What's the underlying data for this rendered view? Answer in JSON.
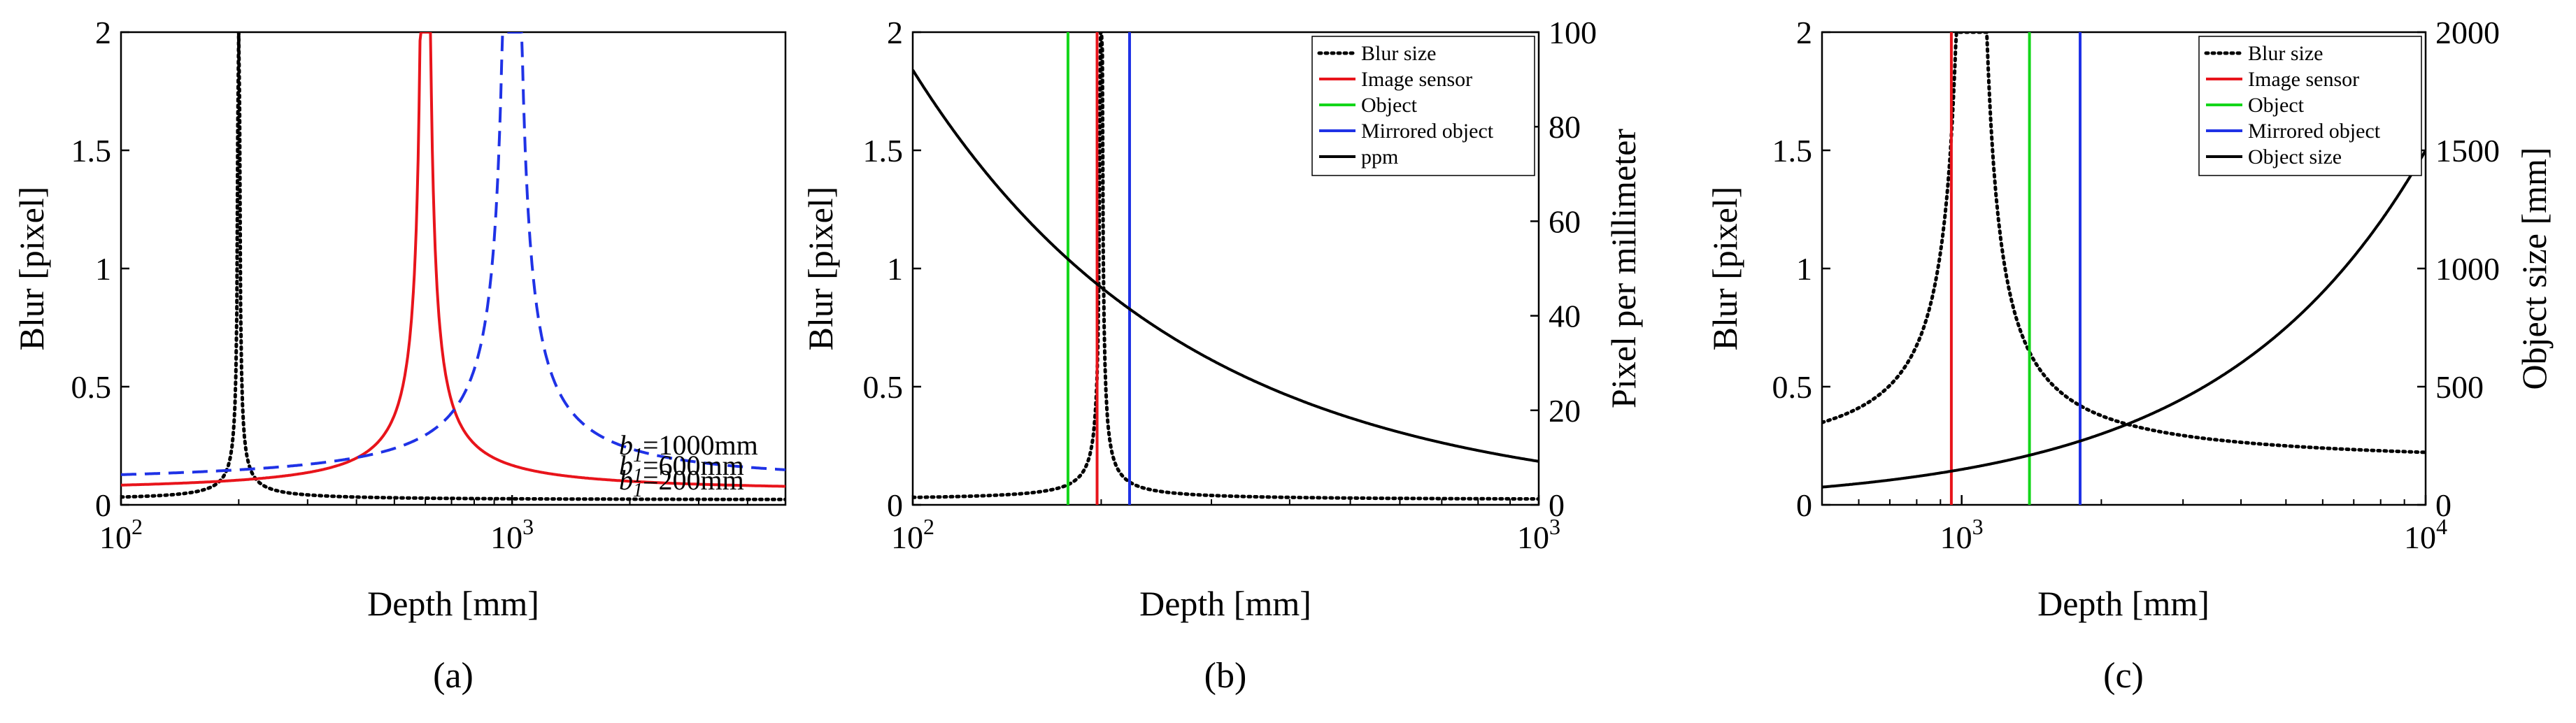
{
  "chart_data": [
    {
      "type": "line",
      "panel_label": "(a)",
      "xscale": "log",
      "xlim": [
        100,
        5000
      ],
      "ylim": [
        0,
        2
      ],
      "xlabel": "Depth [mm]",
      "ylabel": "Blur [pixel]",
      "x_ticks": [
        {
          "base": "10",
          "exp": "2"
        },
        {
          "base": "10",
          "exp": "3"
        }
      ],
      "y_ticks": [
        "0",
        "0.5",
        "1",
        "1.5",
        "2"
      ],
      "series": [
        {
          "name": "b1=200mm",
          "style": "dotted",
          "color": "#000000",
          "model": "blur",
          "focus_mm": 200,
          "k": 0.009,
          "c": 0.02,
          "cap": 2
        },
        {
          "name": "b1=600mm",
          "style": "solid",
          "color": "#e8141b",
          "model": "blur",
          "focus_mm": 600,
          "k": 0.06,
          "c": 0.05,
          "cap": 2
        },
        {
          "name": "b1=1000mm",
          "style": "dashed",
          "color": "#1f32e6",
          "model": "blur",
          "focus_mm": 1000,
          "k": 0.11,
          "c": 0.08,
          "cap": 2
        }
      ],
      "annotations": [
        {
          "series": 2,
          "sub": "1",
          "rest": "=1000mm",
          "at_x": 3300
        },
        {
          "series": 1,
          "sub": "1",
          "rest": "=600mm",
          "at_x": 3300
        },
        {
          "series": 0,
          "sub": "1",
          "rest": "=200mm",
          "at_x": 3300
        }
      ]
    },
    {
      "type": "line",
      "panel_label": "(b)",
      "xscale": "log",
      "xlim": [
        100,
        1000
      ],
      "ylim": [
        0,
        2
      ],
      "y2lim": [
        0,
        100
      ],
      "xlabel": "Depth [mm]",
      "ylabel": "Blur [pixel]",
      "y2label": "Pixel per millimeter",
      "x_ticks": [
        {
          "base": "10",
          "exp": "2"
        },
        {
          "base": "10",
          "exp": "3"
        }
      ],
      "y_ticks": [
        "0",
        "0.5",
        "1",
        "1.5",
        "2"
      ],
      "y2_ticks": [
        "0",
        "20",
        "40",
        "60",
        "80",
        "100"
      ],
      "series": [
        {
          "name": "Blur size",
          "style": "dotted",
          "color": "#000000",
          "model": "blur",
          "focus_mm": 200,
          "k": 0.008,
          "c": 0.02,
          "cap": 2
        },
        {
          "name": "Image sensor",
          "style": "solid",
          "color": "#e8141b",
          "model": "vline",
          "x": 197
        },
        {
          "name": "Object",
          "style": "solid",
          "color": "#13d61a",
          "model": "vline",
          "x": 177
        },
        {
          "name": "Mirrored object",
          "style": "solid",
          "color": "#1f32e6",
          "model": "vline",
          "x": 222
        },
        {
          "name": "ppm",
          "style": "solid",
          "color": "#000000",
          "model": "power",
          "axis": "y2",
          "a": 9200,
          "p": 1.0
        }
      ],
      "legend": {
        "position": "top-right"
      }
    },
    {
      "type": "line",
      "panel_label": "(c)",
      "xscale": "log",
      "xlim": [
        500,
        10000
      ],
      "ylim": [
        0,
        2
      ],
      "y2lim": [
        0,
        2000
      ],
      "xlabel": "Depth [mm]",
      "ylabel": "Blur [pixel]",
      "y2label": "Object size [mm]",
      "x_ticks": [
        {
          "value": 1000,
          "base": "10",
          "exp": "3"
        },
        {
          "value": 10000,
          "base": "10",
          "exp": "4"
        }
      ],
      "y_ticks": [
        "0",
        "0.5",
        "1",
        "1.5",
        "2"
      ],
      "y2_ticks": [
        "0",
        "500",
        "1000",
        "1500",
        "2000"
      ],
      "series": [
        {
          "name": "Blur size",
          "style": "dotted",
          "color": "#000000",
          "model": "blur",
          "focus_mm": 1050,
          "k": 0.14,
          "c": 0.16,
          "cap": 2
        },
        {
          "name": "Image sensor",
          "style": "solid",
          "color": "#e8141b",
          "model": "vline",
          "x": 950
        },
        {
          "name": "Object",
          "style": "solid",
          "color": "#13d61a",
          "model": "vline",
          "x": 1400
        },
        {
          "name": "Mirrored object",
          "style": "solid",
          "color": "#1f32e6",
          "model": "vline",
          "x": 1800
        },
        {
          "name": "Object size",
          "style": "solid",
          "color": "#000000",
          "model": "linear",
          "axis": "y2",
          "a": 0.15,
          "b": 0
        }
      ],
      "legend": {
        "position": "top-right"
      }
    }
  ]
}
